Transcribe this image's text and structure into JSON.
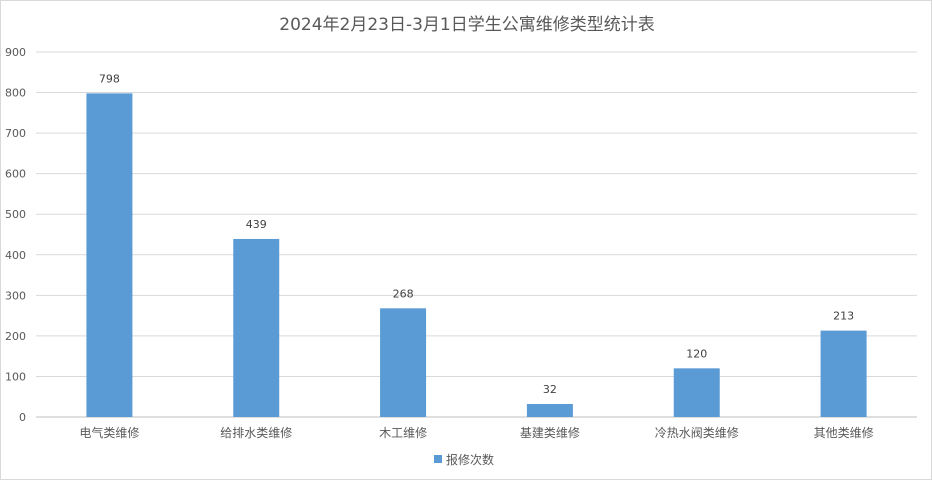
{
  "chart_data": {
    "type": "bar",
    "title": "2024年2月23日-3月1日学生公寓维修类型统计表",
    "categories": [
      "电气类维修",
      "给排水类维修",
      "木工维修",
      "基建类维修",
      "冷热水阀类维修",
      "其他类维修"
    ],
    "series": [
      {
        "name": "报修次数",
        "values": [
          798,
          439,
          268,
          32,
          120,
          213
        ],
        "color": "#5b9bd5"
      }
    ],
    "ylim": [
      0,
      900
    ],
    "yticks": [
      0,
      100,
      200,
      300,
      400,
      500,
      600,
      700,
      800,
      900
    ],
    "xlabel": "",
    "ylabel": "",
    "grid": true,
    "legend": "bottom",
    "data_labels": true
  }
}
